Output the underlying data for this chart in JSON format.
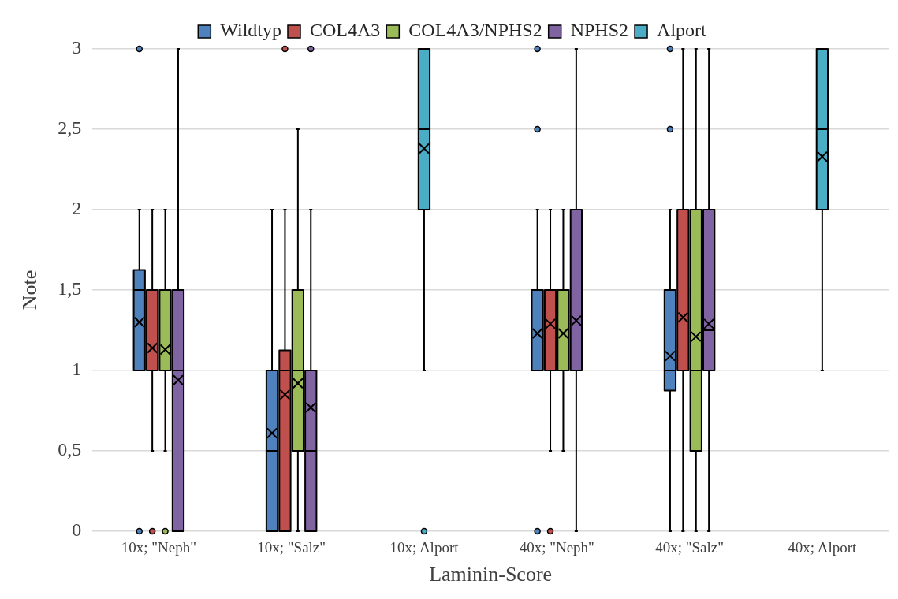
{
  "chart_data": {
    "type": "box",
    "xlabel": "Laminin-Score",
    "ylabel": "Note",
    "categories": [
      "10x; \"Neph\"",
      "10x; \"Salz\"",
      "10x; Alport",
      "40x; \"Neph\"",
      "40x; \"Salz\"",
      "40x; Alport"
    ],
    "ylim": [
      0,
      3
    ],
    "yticks": [
      0,
      {
        "value": 0.5,
        "label": "0,5"
      },
      1,
      {
        "value": 1.5,
        "label": "1,5"
      },
      2,
      {
        "value": 2.5,
        "label": "2,5"
      },
      3
    ],
    "grid": "y",
    "legend": "top",
    "series": [
      {
        "name": "Wildtyp",
        "color": "#4f81bd",
        "boxes": [
          {
            "low": 1,
            "q1": 1,
            "median": 1.5,
            "q3": 1.625,
            "high": 2,
            "mean": 1.3,
            "outliers": [
              3,
              0
            ]
          },
          {
            "low": 0,
            "q1": 0,
            "median": 0.5,
            "q3": 1,
            "high": 2,
            "mean": 0.61
          },
          null,
          {
            "low": 1,
            "q1": 1,
            "median": 1,
            "q3": 1.5,
            "high": 2,
            "mean": 1.23,
            "outliers": [
              3,
              2.5,
              0
            ]
          },
          {
            "low": 0,
            "q1": 0.875,
            "median": 1,
            "q3": 1.5,
            "high": 2,
            "mean": 1.09,
            "outliers": [
              3,
              2.5
            ]
          },
          null
        ]
      },
      {
        "name": "COL4A3",
        "color": "#c0504d",
        "boxes": [
          {
            "low": 0.5,
            "q1": 1,
            "median": 1,
            "q3": 1.5,
            "high": 2,
            "mean": 1.14,
            "outliers": [
              0
            ]
          },
          {
            "low": 0,
            "q1": 0,
            "median": 1,
            "q3": 1.125,
            "high": 2,
            "mean": 0.85,
            "outliers": [
              3
            ]
          },
          null,
          {
            "low": 0.5,
            "q1": 1,
            "median": 1,
            "q3": 1.5,
            "high": 2,
            "mean": 1.29,
            "outliers": [
              0
            ]
          },
          {
            "low": 0,
            "q1": 1,
            "median": 1,
            "q3": 2,
            "high": 3,
            "mean": 1.33
          },
          null
        ]
      },
      {
        "name": "COL4A3/NPHS2",
        "color": "#9bbb59",
        "boxes": [
          {
            "low": 0.5,
            "q1": 1,
            "median": 1,
            "q3": 1.5,
            "high": 2,
            "mean": 1.13,
            "outliers": [
              0
            ]
          },
          {
            "low": 0,
            "q1": 0.5,
            "median": 1,
            "q3": 1.5,
            "high": 2.5,
            "mean": 0.92
          },
          null,
          {
            "low": 0.5,
            "q1": 1,
            "median": 1,
            "q3": 1.5,
            "high": 2,
            "mean": 1.23
          },
          {
            "low": 0,
            "q1": 0.5,
            "median": 1,
            "q3": 2,
            "high": 3,
            "mean": 1.21
          },
          null
        ]
      },
      {
        "name": "NPHS2",
        "color": "#8064a2",
        "boxes": [
          {
            "low": 0,
            "q1": 0,
            "median": 1,
            "q3": 1.5,
            "high": 3,
            "mean": 0.94
          },
          {
            "low": 0,
            "q1": 0,
            "median": 0.5,
            "q3": 1,
            "high": 2,
            "mean": 0.77,
            "outliers": [
              3
            ]
          },
          null,
          {
            "low": 0,
            "q1": 1,
            "median": 1,
            "q3": 2,
            "high": 3,
            "mean": 1.31
          },
          {
            "low": 0,
            "q1": 1,
            "median": 1.25,
            "q3": 2,
            "high": 3,
            "mean": 1.29
          },
          null
        ]
      },
      {
        "name": "Alport",
        "color": "#4bacc6",
        "boxes": [
          null,
          null,
          {
            "low": 1,
            "q1": 2,
            "median": 2.5,
            "q3": 3,
            "high": 3,
            "mean": 2.38,
            "outliers": [
              0
            ]
          },
          null,
          null,
          {
            "low": 1,
            "q1": 2,
            "median": 2.5,
            "q3": 3,
            "high": 3,
            "mean": 2.33
          }
        ]
      }
    ]
  }
}
